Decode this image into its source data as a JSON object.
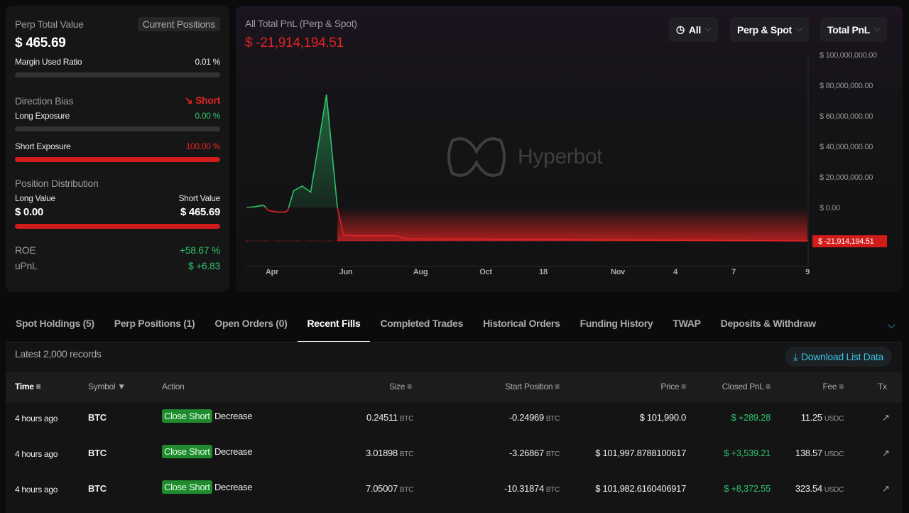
{
  "summary": {
    "perp_total_value_label": "Perp Total Value",
    "current_positions_label": "Current Positions",
    "perp_total_value": "$ 465.69",
    "margin_used_label": "Margin Used Ratio",
    "margin_used_value": "0.01 %",
    "margin_used_fraction": 0.0001,
    "direction_bias_label": "Direction Bias",
    "direction_bias_value": "Short",
    "long_exposure_label": "Long Exposure",
    "long_exposure_value": "0.00 %",
    "long_exposure_fraction": 0,
    "short_exposure_label": "Short Exposure",
    "short_exposure_value": "100.00 %",
    "short_exposure_fraction": 1,
    "position_distribution_label": "Position Distribution",
    "long_value_label": "Long Value",
    "short_value_label": "Short Value",
    "long_value": "$ 0.00",
    "short_value": "$ 465.69",
    "roe_label": "ROE",
    "roe_value": "+58.67 %",
    "upnl_label": "uPnL",
    "upnl_value": "$ +6.83"
  },
  "chart_header": {
    "title": "All Total PnL (Perp & Spot)",
    "value": "$ -21,914,194.51",
    "filters": [
      "All",
      "Perp & Spot",
      "Total PnL"
    ],
    "watermark": "Hyperbot"
  },
  "chart_data": {
    "type": "area",
    "title": "All Total PnL (Perp & Spot)",
    "ylim": [
      -30000000,
      100000000
    ],
    "y_ticks": [
      "$ 100,000,000.00",
      "$ 80,000,000.00",
      "$ 60,000,000.00",
      "$ 40,000,000.00",
      "$ 20,000,000.00",
      "$ 0.00"
    ],
    "y_tick_values": [
      100000000,
      80000000,
      60000000,
      40000000,
      20000000,
      0
    ],
    "x_ticks": [
      {
        "label": "Apr",
        "date": "2025-04-01"
      },
      {
        "label": "Jun",
        "date": "2025-06-01"
      },
      {
        "label": "Aug",
        "date": "2025-08-01"
      },
      {
        "label": "Oct",
        "date": "2025-10-01"
      },
      {
        "label": "18",
        "date": "2025-10-18"
      },
      {
        "label": "Nov",
        "date": "2025-11-01"
      },
      {
        "label": "4",
        "date": "2025-11-04"
      },
      {
        "label": "7",
        "date": "2025-11-07"
      },
      {
        "label": "9",
        "date": "2025-11-09"
      }
    ],
    "series": [
      {
        "x": [
          "2025-03-11",
          "2025-03-18",
          "2025-03-25",
          "2025-03-29",
          "2025-04-05",
          "2025-04-12",
          "2025-04-14",
          "2025-04-19",
          "2025-04-26",
          "2025-05-03",
          "2025-05-16",
          "2025-05-25",
          "2025-05-30",
          "2025-06-08",
          "2025-07-12",
          "2025-07-20",
          "2025-11-09"
        ],
        "y": [
          0,
          500000,
          1500000,
          -2000000,
          -3000000,
          -3000000,
          -2000000,
          11000000,
          14000000,
          10000000,
          74000000,
          0,
          -18000000,
          -18500000,
          -18500000,
          -20500000,
          -21914194.51
        ]
      }
    ],
    "current_value_label": "$ -21,914,194.51",
    "colors": {
      "positive": "#2ec26a",
      "negative": "#e02424"
    }
  },
  "tabs": [
    "Spot Holdings (5)",
    "Perp Positions (1)",
    "Open Orders (0)",
    "Recent Fills",
    "Completed Trades",
    "Historical Orders",
    "Funding History",
    "TWAP",
    "Deposits & Withdraw"
  ],
  "active_tab": "Recent Fills",
  "table": {
    "records_label": "Latest 2,000 records",
    "download_label": "Download List Data",
    "headers": [
      "Time",
      "Symbol",
      "Action",
      "Size",
      "Start Position",
      "Price",
      "Closed PnL",
      "Fee",
      "Tx"
    ],
    "rows": [
      {
        "time": "4 hours ago",
        "symbol": "BTC",
        "action": "Close Short",
        "dir": "Decrease",
        "size": "0.24511",
        "size_unit": "BTC",
        "start": "-0.24969",
        "start_unit": "BTC",
        "price": "$ 101,990.0",
        "pnl": "$ +289.28",
        "fee": "11.25",
        "fee_unit": "USDC"
      },
      {
        "time": "4 hours ago",
        "symbol": "BTC",
        "action": "Close Short",
        "dir": "Decrease",
        "size": "3.01898",
        "size_unit": "BTC",
        "start": "-3.26867",
        "start_unit": "BTC",
        "price": "$ 101,997.8788100617",
        "pnl": "$ +3,539.21",
        "fee": "138.57",
        "fee_unit": "USDC"
      },
      {
        "time": "4 hours ago",
        "symbol": "BTC",
        "action": "Close Short",
        "dir": "Decrease",
        "size": "7.05007",
        "size_unit": "BTC",
        "start": "-10.31874",
        "start_unit": "BTC",
        "price": "$ 101,982.6160406917",
        "pnl": "$ +8,372.55",
        "fee": "323.54",
        "fee_unit": "USDC"
      }
    ]
  }
}
